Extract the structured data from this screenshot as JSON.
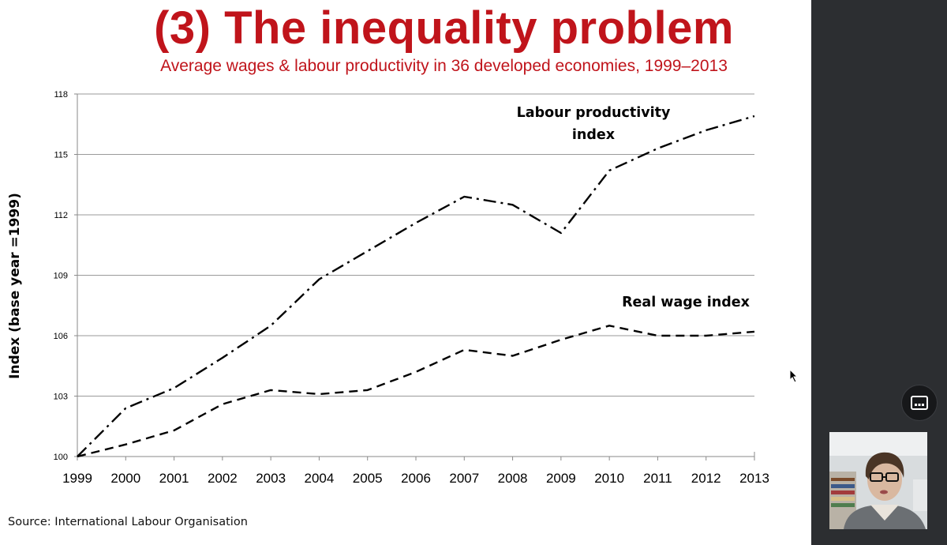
{
  "slide": {
    "title": "(3) The inequality problem",
    "subtitle": "Average wages & labour productivity in 36 developed economies, 1999–2013",
    "source": "Source: International Labour Organisation"
  },
  "chart_data": {
    "type": "line",
    "ylabel": "Index (base year =1999)",
    "xlabel": "",
    "x": [
      "1999",
      "2000",
      "2001",
      "2002",
      "2003",
      "2004",
      "2005",
      "2006",
      "2007",
      "2008",
      "2009",
      "2010",
      "2011",
      "2012",
      "2013"
    ],
    "ylim": [
      100,
      118
    ],
    "yticks": [
      100,
      103,
      106,
      109,
      112,
      115,
      118
    ],
    "grid": true,
    "series": [
      {
        "name": "Labour productivity index",
        "label_lines": [
          "Labour productivity",
          "index"
        ],
        "style": "dash-dot",
        "values": [
          100.0,
          102.4,
          103.4,
          104.9,
          106.5,
          108.8,
          110.2,
          111.6,
          112.9,
          112.5,
          111.1,
          114.2,
          115.3,
          116.2,
          116.9
        ]
      },
      {
        "name": "Real wage index",
        "label_lines": [
          "Real wage index"
        ],
        "style": "dashed",
        "values": [
          100.0,
          100.6,
          101.3,
          102.6,
          103.3,
          103.1,
          103.3,
          104.2,
          105.3,
          105.0,
          105.8,
          106.5,
          106.0,
          106.0,
          106.2
        ]
      }
    ],
    "colors": {
      "line": "#000000",
      "grid": "#9a9a9a",
      "title": "#c0141b"
    }
  },
  "sidebar": {
    "caption_button_icon": "closed-caption-icon",
    "presenter_icon": "presenter-video-thumbnail"
  }
}
